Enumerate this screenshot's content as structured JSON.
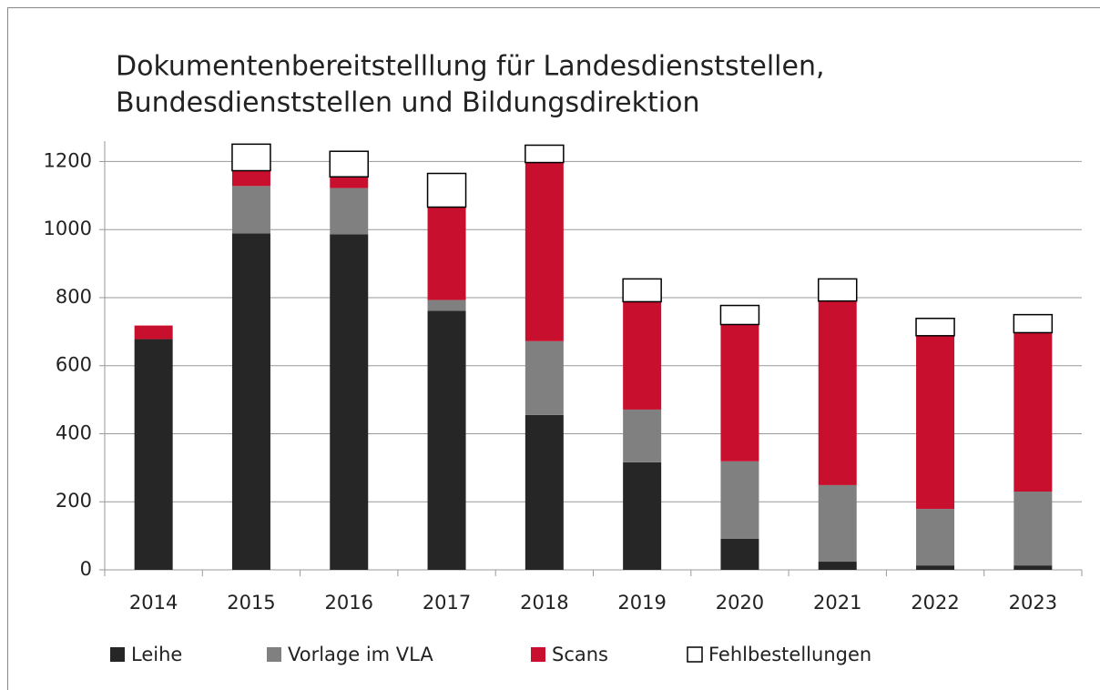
{
  "chart_data": {
    "type": "stacked_bar",
    "title": [
      "Dokumentenbereitstelllung für Landesdienststellen,",
      "Bundesdienststellen und Bildungsdirektion"
    ],
    "categories": [
      "2014",
      "2015",
      "2016",
      "2017",
      "2018",
      "2019",
      "2020",
      "2021",
      "2022",
      "2023"
    ],
    "series": [
      {
        "name": "Leihe",
        "color": "#262626",
        "values": [
          678,
          989,
          986,
          761,
          455,
          316,
          91,
          24,
          13,
          13
        ]
      },
      {
        "name": "Vorlage im VLA",
        "color": "#808080",
        "values": [
          0,
          139,
          136,
          32,
          217,
          155,
          228,
          225,
          166,
          217
        ]
      },
      {
        "name": "Scans",
        "color": "#c8102e",
        "values": [
          40,
          45,
          33,
          273,
          525,
          317,
          402,
          541,
          509,
          467
        ]
      },
      {
        "name": "Fehlbestellungen",
        "color": "#ffffff",
        "values": [
          0,
          78,
          75,
          99,
          51,
          67,
          56,
          65,
          51,
          53
        ]
      }
    ],
    "ylim": [
      0,
      1260
    ],
    "yticks": [
      0,
      200,
      400,
      600,
      800,
      1000,
      1200
    ],
    "grid": true,
    "legend": "bottom"
  }
}
